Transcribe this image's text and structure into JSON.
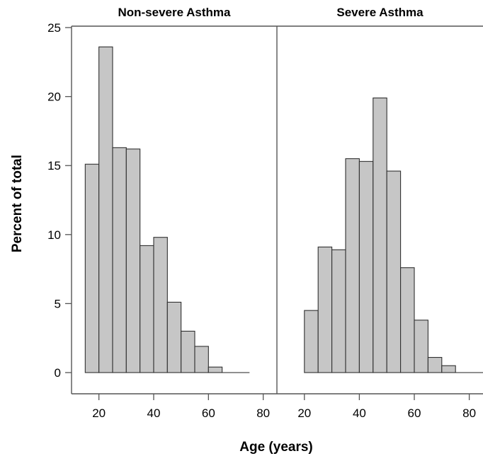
{
  "chart_data": {
    "type": "bar",
    "ylabel": "Percent of total",
    "xlabel": "Age (years)",
    "ylim": [
      0,
      25
    ],
    "yticks": [
      0,
      5,
      10,
      15,
      20,
      25
    ],
    "xticks": [
      20,
      40,
      60,
      80
    ],
    "xlim": [
      10,
      85
    ],
    "bin_width": 5,
    "panels": [
      {
        "title": "Non-severe Asthma",
        "bin_starts": [
          15,
          20,
          25,
          30,
          35,
          40,
          45,
          50,
          55,
          60,
          65,
          70
        ],
        "values": [
          15.1,
          23.6,
          16.3,
          16.2,
          9.2,
          9.8,
          5.1,
          3.0,
          1.9,
          0.4,
          0.0,
          0.0
        ]
      },
      {
        "title": "Severe Asthma",
        "bin_starts": [
          20,
          25,
          30,
          35,
          40,
          45,
          50,
          55,
          60,
          65,
          70,
          75,
          80
        ],
        "values": [
          4.5,
          9.1,
          8.9,
          15.5,
          15.3,
          19.9,
          14.6,
          7.6,
          3.8,
          1.1,
          0.5,
          0.0,
          0.0
        ]
      }
    ]
  }
}
